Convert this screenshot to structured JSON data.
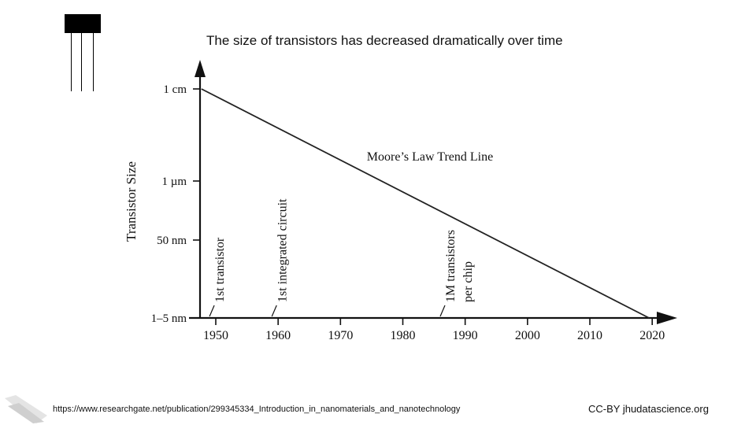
{
  "slide": {
    "title": "The size of transistors has decreased dramatically over time",
    "source": "https://www.researchgate.net/publication/299345334_Introduction_in_nanomaterials_and_nanotechnology",
    "license": "CC-BY jhudatascience.org",
    "icons": [
      "transistor-icon",
      "logo-icon"
    ]
  },
  "chart_data": {
    "type": "line",
    "title": "",
    "xlabel": "",
    "ylabel": "Transistor Size",
    "x_ticks": [
      "1950",
      "1960",
      "1970",
      "1980",
      "1990",
      "2000",
      "2010",
      "2020"
    ],
    "y_ticks": [
      "1 cm",
      "1 µm",
      "50 nm",
      "1–5 nm"
    ],
    "y_scale": "categorical-log",
    "xlim": [
      1947.7,
      2020
    ],
    "series": [
      {
        "name": "Moore’s Law Trend Line",
        "points": [
          {
            "x": 1947.7,
            "y": "1 cm"
          },
          {
            "x": 2019.5,
            "y": "1–5 nm"
          }
        ]
      }
    ],
    "annotations": [
      {
        "lines": [
          "1st transistor"
        ],
        "x": 1949
      },
      {
        "lines": [
          "1st integrated circuit"
        ],
        "x": 1959
      },
      {
        "lines": [
          "1M transistors",
          "per chip"
        ],
        "x": 1986
      }
    ],
    "grid": false,
    "colors": {
      "line": "#222222",
      "axis": "#111111"
    }
  }
}
